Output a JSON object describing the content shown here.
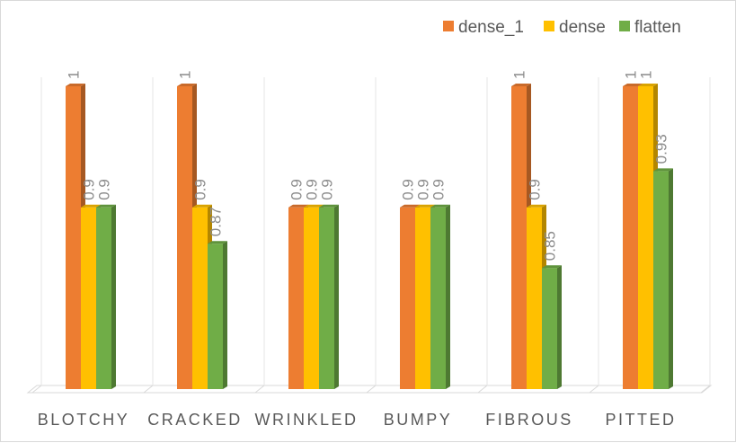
{
  "chart_data": {
    "type": "bar",
    "categories": [
      "BLOTCHY",
      "CRACKED",
      "WRINKLED",
      "BUMPY",
      "FIBROUS",
      "PITTED"
    ],
    "series": [
      {
        "name": "dense_1",
        "values": [
          1,
          1,
          0.9,
          0.9,
          1,
          1
        ]
      },
      {
        "name": "dense",
        "values": [
          0.9,
          0.9,
          0.9,
          0.9,
          0.9,
          1
        ]
      },
      {
        "name": "flatten",
        "values": [
          0.9,
          0.87,
          0.9,
          0.9,
          0.85,
          0.93
        ]
      }
    ],
    "ylim": [
      0.75,
      1
    ],
    "grid": false,
    "legend": "top-right",
    "colors": {
      "dense_1": "#ed7d31",
      "dense": "#ffc000",
      "flatten": "#70ad47"
    }
  }
}
